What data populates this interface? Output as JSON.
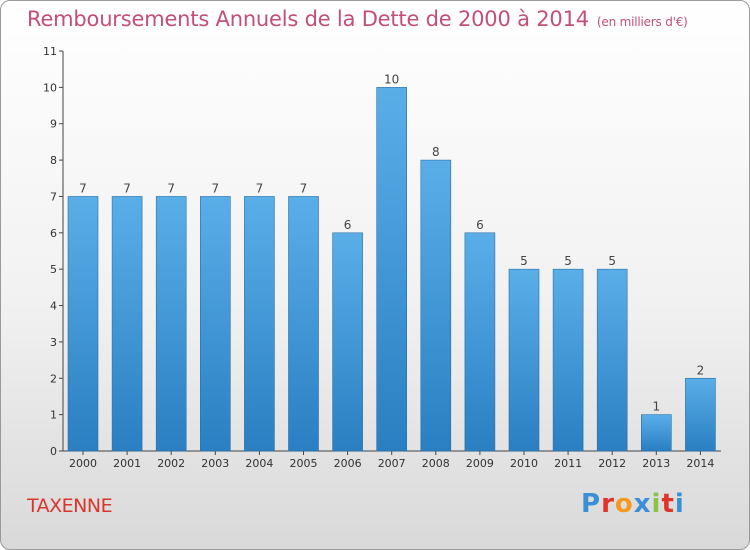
{
  "header": {
    "title": "Remboursements Annuels de la Dette de 2000 à 2014",
    "unit": "(en milliers d'€)"
  },
  "footer": {
    "commune": "TAXENNE",
    "logo_letters": [
      "P",
      "r",
      "o",
      "x",
      "i",
      "t",
      "i"
    ],
    "logo_colors": [
      "#3b8fd6",
      "#e2332a",
      "#f39a1e",
      "#3b8fd6",
      "#8bc34a",
      "#e2332a",
      "#3b8fd6"
    ]
  },
  "chart_data": {
    "type": "bar",
    "categories": [
      "2000",
      "2001",
      "2002",
      "2003",
      "2004",
      "2005",
      "2006",
      "2007",
      "2008",
      "2009",
      "2010",
      "2011",
      "2012",
      "2013",
      "2014"
    ],
    "values": [
      7,
      7,
      7,
      7,
      7,
      7,
      6,
      10,
      8,
      6,
      5,
      5,
      5,
      1,
      2
    ],
    "ylim": [
      0,
      11
    ],
    "yticks": [
      0,
      1,
      2,
      3,
      4,
      5,
      6,
      7,
      8,
      9,
      10,
      11
    ],
    "grid": false,
    "bar_color_top": "#5aaee8",
    "bar_color_bottom": "#2a7fc2"
  }
}
